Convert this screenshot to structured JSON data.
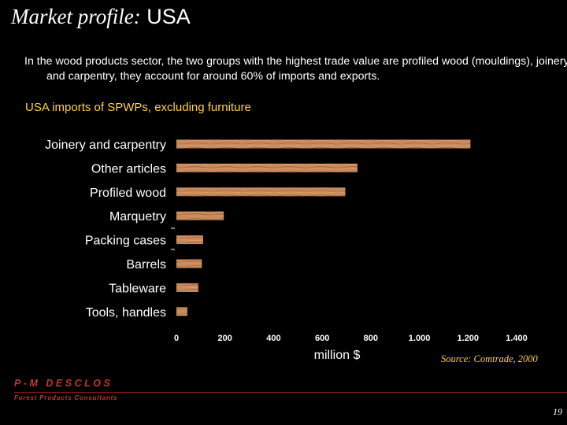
{
  "slide": {
    "title_italic": "Market profile:",
    "title_plain": "USA",
    "intro": "In the wood products sector, the two groups with the highest trade value are profiled wood (mouldings), joinery and carpentry, they account for around 60% of imports and exports.",
    "subhead": "USA imports of SPWPs, excluding furniture",
    "source": "Source: Comtrade, 2000",
    "brand": "P-M DESCLOS",
    "tagline": "Forest Products Consultants",
    "page_number": "19"
  },
  "colors": {
    "background": "#000000",
    "bar_wood": "#c98a5c",
    "subhead": "#ffd23c",
    "brand": "#c0392b"
  },
  "chart_data": {
    "type": "bar",
    "orientation": "horizontal",
    "categories": [
      "Joinery and carpentry",
      "Other articles",
      "Profiled wood",
      "Marquetry",
      "Packing cases",
      "Barrels",
      "Tableware",
      "Tools, handles"
    ],
    "values": [
      1210,
      745,
      695,
      195,
      110,
      105,
      90,
      45
    ],
    "xlabel": "million $",
    "xlim": [
      0,
      1400
    ],
    "xticks": [
      0,
      200,
      400,
      600,
      800,
      1000,
      1200,
      1400
    ],
    "xtick_labels": [
      "0",
      "200",
      "400",
      "600",
      "800",
      "1.000",
      "1.200",
      "1.400"
    ],
    "grid": false
  }
}
